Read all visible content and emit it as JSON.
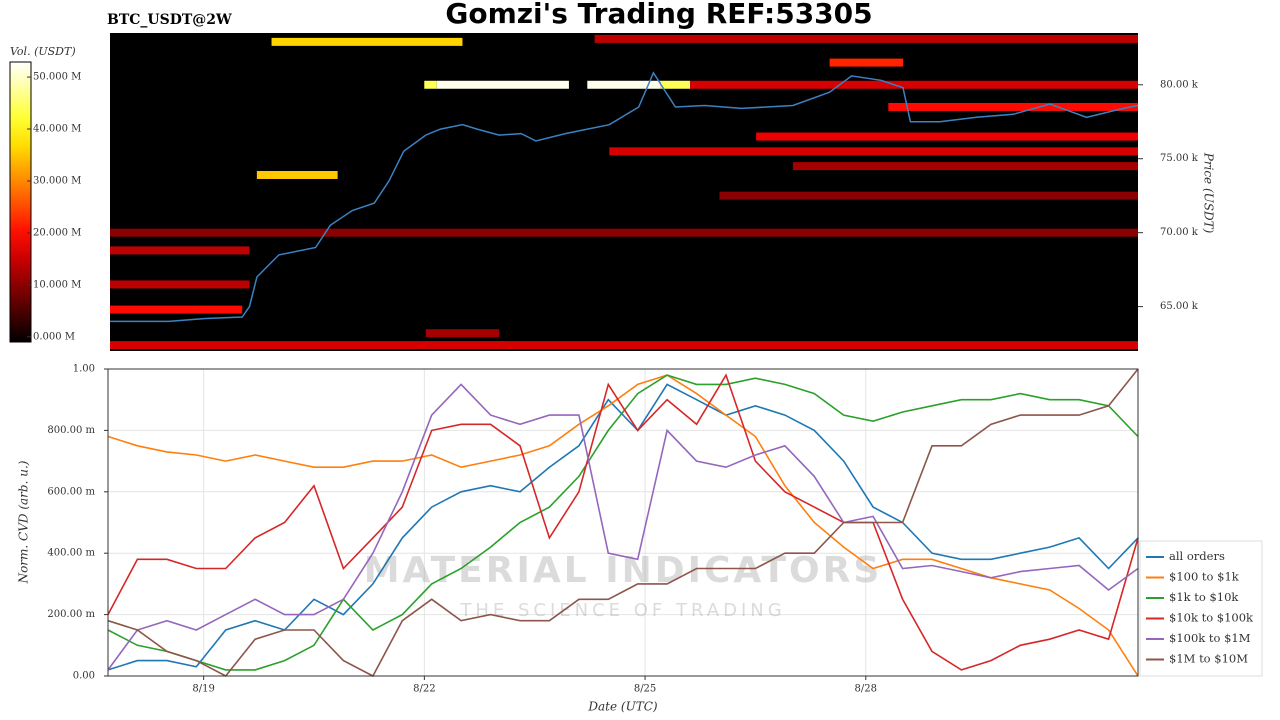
{
  "chart_data": [
    {
      "type": "heatmap",
      "title": "Gomzi's Trading REF:53305",
      "subtitle": "BTC_USDT@2W",
      "ylabel": "Price (USDT)",
      "colorbar_label": "Vol. (USDT)",
      "xlim": [
        17.7,
        31.7
      ],
      "ylim": [
        62000,
        83500
      ],
      "yticks": [
        {
          "value": 65000,
          "label": "65.00 k"
        },
        {
          "value": 70000,
          "label": "70.00 k"
        },
        {
          "value": 75000,
          "label": "75.00 k"
        },
        {
          "value": 80000,
          "label": "80.00 k"
        }
      ],
      "clim": [
        -1000000,
        52900000
      ],
      "cticks": [
        {
          "value": 0,
          "label": "0.000 M"
        },
        {
          "value": 10000000,
          "label": "10.000 M"
        },
        {
          "value": 20000000,
          "label": "20.000 M"
        },
        {
          "value": 30000000,
          "label": "30.000 M"
        },
        {
          "value": 40000000,
          "label": "40.000 M"
        },
        {
          "value": 50000000,
          "label": "50.000 M"
        }
      ],
      "bands": [
        {
          "price": 83100,
          "start": 24.3,
          "end": 31.7,
          "volume": 14000000
        },
        {
          "price": 82900,
          "start": 19.9,
          "end": 22.5,
          "volume": 36000000
        },
        {
          "price": 81500,
          "start": 27.5,
          "end": 28.5,
          "volume": 22000000
        },
        {
          "price": 80000,
          "start": 21.98,
          "end": 22.15,
          "volume": 44000000
        },
        {
          "price": 80000,
          "start": 22.15,
          "end": 23.95,
          "volume": 52000000
        },
        {
          "price": 80000,
          "start": 24.2,
          "end": 25.2,
          "volume": 52000000
        },
        {
          "price": 80000,
          "start": 25.2,
          "end": 25.6,
          "volume": 44000000
        },
        {
          "price": 80000,
          "start": 25.6,
          "end": 31.7,
          "volume": 16000000
        },
        {
          "price": 78500,
          "start": 28.3,
          "end": 31.7,
          "volume": 20000000
        },
        {
          "price": 76500,
          "start": 26.5,
          "end": 31.7,
          "volume": 18000000
        },
        {
          "price": 75500,
          "start": 24.5,
          "end": 31.7,
          "volume": 16000000
        },
        {
          "price": 74500,
          "start": 27.0,
          "end": 31.7,
          "volume": 12000000
        },
        {
          "price": 73900,
          "start": 19.7,
          "end": 20.8,
          "volume": 35000000
        },
        {
          "price": 72500,
          "start": 26.0,
          "end": 31.7,
          "volume": 10000000
        },
        {
          "price": 70000,
          "start": 17.7,
          "end": 31.7,
          "volume": 10000000
        },
        {
          "price": 68800,
          "start": 17.7,
          "end": 19.6,
          "volume": 14000000
        },
        {
          "price": 66500,
          "start": 17.7,
          "end": 19.6,
          "volume": 14000000
        },
        {
          "price": 64800,
          "start": 17.7,
          "end": 19.5,
          "volume": 20000000
        },
        {
          "price": 63200,
          "start": 22.0,
          "end": 23.0,
          "volume": 12000000
        },
        {
          "price": 62400,
          "start": 17.7,
          "end": 31.7,
          "volume": 16000000
        }
      ],
      "price": {
        "color": "#3b82c4",
        "x": [
          17.7,
          18.5,
          19.0,
          19.5,
          19.6,
          19.7,
          20.0,
          20.5,
          20.7,
          21.0,
          21.3,
          21.5,
          21.7,
          22.0,
          22.2,
          22.5,
          22.7,
          23.0,
          23.3,
          23.5,
          23.9,
          24.5,
          24.9,
          25.1,
          25.4,
          25.8,
          26.3,
          27.0,
          27.5,
          27.8,
          28.2,
          28.5,
          28.6,
          29.0,
          29.5,
          30.0,
          30.5,
          31.0,
          31.5,
          31.7
        ],
        "values": [
          64000,
          64000,
          64200,
          64300,
          65000,
          67000,
          68500,
          69000,
          70500,
          71500,
          72000,
          73500,
          75500,
          76600,
          77000,
          77300,
          77000,
          76600,
          76700,
          76200,
          76700,
          77300,
          78500,
          80800,
          78500,
          78600,
          78400,
          78600,
          79500,
          80600,
          80300,
          79800,
          77500,
          77500,
          77800,
          78000,
          78700,
          77800,
          78400,
          78600
        ]
      }
    },
    {
      "type": "line",
      "xlabel": "Date (UTC)",
      "ylabel": "Norm. CVD (arb. u.)",
      "watermark": {
        "title": "MATERIAL INDICATORS",
        "subtitle": "THE SCIENCE OF TRADING"
      },
      "xlim": [
        17.7,
        31.7
      ],
      "ylim": [
        0,
        1
      ],
      "xticks": [
        {
          "value": 19,
          "label": "8/19"
        },
        {
          "value": 22,
          "label": "8/22"
        },
        {
          "value": 25,
          "label": "8/25"
        },
        {
          "value": 28,
          "label": "8/28"
        }
      ],
      "yticks": [
        {
          "value": 0,
          "label": "0.00"
        },
        {
          "value": 0.2,
          "label": "200.00 m"
        },
        {
          "value": 0.4,
          "label": "400.00 m"
        },
        {
          "value": 0.6,
          "label": "600.00 m"
        },
        {
          "value": 0.8,
          "label": "800.00 m"
        },
        {
          "value": 1,
          "label": "1.00"
        }
      ],
      "grid": true,
      "legend": "lower right",
      "x": [
        17.7,
        18.1,
        18.5,
        18.9,
        19.3,
        19.7,
        20.1,
        20.5,
        20.9,
        21.3,
        21.7,
        22.1,
        22.5,
        22.9,
        23.3,
        23.7,
        24.1,
        24.5,
        24.9,
        25.3,
        25.7,
        26.1,
        26.5,
        26.9,
        27.3,
        27.7,
        28.1,
        28.5,
        28.9,
        29.3,
        29.7,
        30.1,
        30.5,
        30.9,
        31.3,
        31.7
      ],
      "series": [
        {
          "name": "all orders",
          "color": "#1f77b4",
          "values": [
            0.02,
            0.05,
            0.05,
            0.03,
            0.15,
            0.18,
            0.15,
            0.25,
            0.2,
            0.3,
            0.45,
            0.55,
            0.6,
            0.62,
            0.6,
            0.68,
            0.75,
            0.9,
            0.8,
            0.95,
            0.9,
            0.85,
            0.88,
            0.85,
            0.8,
            0.7,
            0.55,
            0.5,
            0.4,
            0.38,
            0.38,
            0.4,
            0.42,
            0.45,
            0.35,
            0.45
          ]
        },
        {
          "name": "$100 to $1k",
          "color": "#ff7f0e",
          "values": [
            0.78,
            0.75,
            0.73,
            0.72,
            0.7,
            0.72,
            0.7,
            0.68,
            0.68,
            0.7,
            0.7,
            0.72,
            0.68,
            0.7,
            0.72,
            0.75,
            0.82,
            0.88,
            0.95,
            0.98,
            0.92,
            0.85,
            0.78,
            0.62,
            0.5,
            0.42,
            0.35,
            0.38,
            0.38,
            0.35,
            0.32,
            0.3,
            0.28,
            0.22,
            0.15,
            0.0
          ]
        },
        {
          "name": "$1k to $10k",
          "color": "#2ca02c",
          "values": [
            0.15,
            0.1,
            0.08,
            0.05,
            0.02,
            0.02,
            0.05,
            0.1,
            0.25,
            0.15,
            0.2,
            0.3,
            0.35,
            0.42,
            0.5,
            0.55,
            0.65,
            0.8,
            0.92,
            0.98,
            0.95,
            0.95,
            0.97,
            0.95,
            0.92,
            0.85,
            0.83,
            0.86,
            0.88,
            0.9,
            0.9,
            0.92,
            0.9,
            0.9,
            0.88,
            0.78
          ]
        },
        {
          "name": "$10k to $100k",
          "color": "#d62728",
          "values": [
            0.2,
            0.38,
            0.38,
            0.35,
            0.35,
            0.45,
            0.5,
            0.62,
            0.35,
            0.45,
            0.55,
            0.8,
            0.82,
            0.82,
            0.75,
            0.45,
            0.6,
            0.95,
            0.8,
            0.9,
            0.82,
            0.98,
            0.7,
            0.6,
            0.55,
            0.5,
            0.5,
            0.25,
            0.08,
            0.02,
            0.05,
            0.1,
            0.12,
            0.15,
            0.12,
            0.45
          ]
        },
        {
          "name": "$100k to $1M",
          "color": "#9467bd",
          "values": [
            0.02,
            0.15,
            0.18,
            0.15,
            0.2,
            0.25,
            0.2,
            0.2,
            0.25,
            0.4,
            0.6,
            0.85,
            0.95,
            0.85,
            0.82,
            0.85,
            0.85,
            0.4,
            0.38,
            0.8,
            0.7,
            0.68,
            0.72,
            0.75,
            0.65,
            0.5,
            0.52,
            0.35,
            0.36,
            0.34,
            0.32,
            0.34,
            0.35,
            0.36,
            0.28,
            0.35
          ]
        },
        {
          "name": "$1M to $10M",
          "color": "#8c564b",
          "values": [
            0.18,
            0.15,
            0.08,
            0.05,
            0.0,
            0.12,
            0.15,
            0.15,
            0.05,
            0.0,
            0.18,
            0.25,
            0.18,
            0.2,
            0.18,
            0.18,
            0.25,
            0.25,
            0.3,
            0.3,
            0.35,
            0.35,
            0.35,
            0.4,
            0.4,
            0.5,
            0.5,
            0.5,
            0.75,
            0.75,
            0.82,
            0.85,
            0.85,
            0.85,
            0.88,
            1.0
          ]
        }
      ]
    }
  ]
}
